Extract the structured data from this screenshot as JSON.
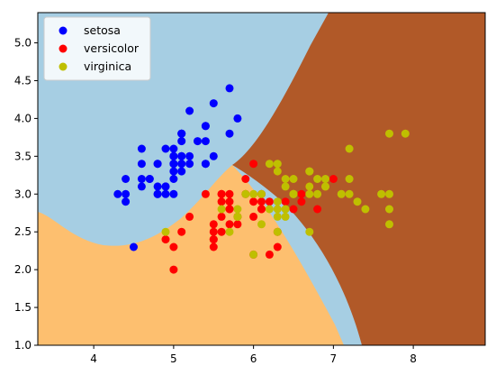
{
  "chart_data": {
    "type": "scatter",
    "title": "",
    "xlabel": "",
    "ylabel": "",
    "xlim": [
      3.3,
      8.9
    ],
    "ylim": [
      1.0,
      5.4
    ],
    "x_ticks": [
      4,
      5,
      6,
      7,
      8
    ],
    "y_ticks": [
      1.0,
      1.5,
      2.0,
      2.5,
      3.0,
      3.5,
      4.0,
      4.5,
      5.0
    ],
    "grid": false,
    "legend_position": "top-left",
    "background_regions": {
      "description_colors": {
        "setosa": "#a6cee3",
        "versicolor": "#fdbf6f",
        "virginica": "#b15928"
      }
    },
    "series": [
      {
        "name": "setosa",
        "color": "#0000ff",
        "points": [
          [
            5.1,
            3.5
          ],
          [
            4.9,
            3.0
          ],
          [
            4.7,
            3.2
          ],
          [
            4.6,
            3.1
          ],
          [
            5.0,
            3.6
          ],
          [
            5.4,
            3.9
          ],
          [
            4.6,
            3.4
          ],
          [
            5.0,
            3.4
          ],
          [
            4.4,
            2.9
          ],
          [
            4.9,
            3.1
          ],
          [
            5.4,
            3.7
          ],
          [
            4.8,
            3.4
          ],
          [
            4.8,
            3.0
          ],
          [
            4.3,
            3.0
          ],
          [
            5.8,
            4.0
          ],
          [
            5.7,
            4.4
          ],
          [
            5.4,
            3.9
          ],
          [
            5.1,
            3.5
          ],
          [
            5.7,
            3.8
          ],
          [
            5.1,
            3.8
          ],
          [
            5.4,
            3.4
          ],
          [
            5.1,
            3.7
          ],
          [
            4.6,
            3.6
          ],
          [
            5.1,
            3.3
          ],
          [
            4.8,
            3.4
          ],
          [
            5.0,
            3.0
          ],
          [
            5.0,
            3.4
          ],
          [
            5.2,
            3.5
          ],
          [
            5.2,
            3.4
          ],
          [
            4.7,
            3.2
          ],
          [
            4.8,
            3.1
          ],
          [
            5.4,
            3.4
          ],
          [
            5.2,
            4.1
          ],
          [
            5.5,
            4.2
          ],
          [
            4.9,
            3.1
          ],
          [
            5.0,
            3.2
          ],
          [
            5.5,
            3.5
          ],
          [
            4.9,
            3.6
          ],
          [
            4.4,
            3.0
          ],
          [
            5.1,
            3.4
          ],
          [
            5.0,
            3.5
          ],
          [
            4.5,
            2.3
          ],
          [
            4.4,
            3.2
          ],
          [
            5.0,
            3.5
          ],
          [
            5.1,
            3.8
          ],
          [
            4.8,
            3.0
          ],
          [
            5.1,
            3.8
          ],
          [
            4.6,
            3.2
          ],
          [
            5.3,
            3.7
          ],
          [
            5.0,
            3.3
          ]
        ]
      },
      {
        "name": "versicolor",
        "color": "#ff0000",
        "points": [
          [
            7.0,
            3.2
          ],
          [
            6.4,
            3.2
          ],
          [
            6.9,
            3.1
          ],
          [
            5.5,
            2.3
          ],
          [
            6.5,
            2.8
          ],
          [
            5.7,
            2.8
          ],
          [
            6.3,
            3.3
          ],
          [
            4.9,
            2.4
          ],
          [
            6.6,
            2.9
          ],
          [
            5.2,
            2.7
          ],
          [
            5.0,
            2.0
          ],
          [
            5.9,
            3.0
          ],
          [
            6.0,
            2.2
          ],
          [
            6.1,
            2.9
          ],
          [
            5.6,
            2.9
          ],
          [
            6.7,
            3.1
          ],
          [
            5.6,
            3.0
          ],
          [
            5.8,
            2.7
          ],
          [
            6.2,
            2.2
          ],
          [
            5.6,
            2.5
          ],
          [
            5.9,
            3.2
          ],
          [
            6.1,
            2.8
          ],
          [
            6.3,
            2.5
          ],
          [
            6.1,
            2.8
          ],
          [
            6.4,
            2.9
          ],
          [
            6.6,
            3.0
          ],
          [
            6.8,
            2.8
          ],
          [
            6.7,
            3.0
          ],
          [
            6.0,
            2.9
          ],
          [
            5.7,
            2.6
          ],
          [
            5.5,
            2.4
          ],
          [
            5.5,
            2.4
          ],
          [
            5.8,
            2.7
          ],
          [
            6.0,
            2.7
          ],
          [
            5.4,
            3.0
          ],
          [
            6.0,
            3.4
          ],
          [
            6.7,
            3.1
          ],
          [
            6.3,
            2.3
          ],
          [
            5.6,
            3.0
          ],
          [
            5.5,
            2.5
          ],
          [
            5.5,
            2.6
          ],
          [
            6.1,
            3.0
          ],
          [
            5.8,
            2.6
          ],
          [
            5.0,
            2.3
          ],
          [
            5.6,
            2.7
          ],
          [
            5.7,
            3.0
          ],
          [
            5.7,
            2.9
          ],
          [
            6.2,
            2.9
          ],
          [
            5.1,
            2.5
          ],
          [
            5.7,
            2.8
          ]
        ]
      },
      {
        "name": "virginica",
        "color": "#bfbf00",
        "points": [
          [
            6.3,
            3.3
          ],
          [
            5.8,
            2.7
          ],
          [
            7.1,
            3.0
          ],
          [
            6.3,
            2.9
          ],
          [
            6.5,
            3.0
          ],
          [
            7.6,
            3.0
          ],
          [
            4.9,
            2.5
          ],
          [
            7.3,
            2.9
          ],
          [
            6.7,
            2.5
          ],
          [
            7.2,
            3.6
          ],
          [
            6.5,
            3.2
          ],
          [
            6.4,
            2.7
          ],
          [
            6.8,
            3.0
          ],
          [
            5.7,
            2.5
          ],
          [
            5.8,
            2.8
          ],
          [
            6.4,
            3.2
          ],
          [
            6.5,
            3.0
          ],
          [
            7.7,
            3.8
          ],
          [
            7.7,
            2.6
          ],
          [
            6.0,
            2.2
          ],
          [
            6.9,
            3.2
          ],
          [
            5.6,
            2.8
          ],
          [
            7.7,
            2.8
          ],
          [
            6.3,
            2.7
          ],
          [
            6.7,
            3.3
          ],
          [
            7.2,
            3.2
          ],
          [
            6.2,
            2.8
          ],
          [
            6.1,
            3.0
          ],
          [
            6.4,
            2.8
          ],
          [
            7.2,
            3.0
          ],
          [
            7.4,
            2.8
          ],
          [
            7.9,
            3.8
          ],
          [
            6.4,
            2.8
          ],
          [
            6.3,
            2.8
          ],
          [
            6.1,
            2.6
          ],
          [
            7.7,
            3.0
          ],
          [
            6.3,
            3.4
          ],
          [
            6.4,
            3.1
          ],
          [
            6.0,
            3.0
          ],
          [
            6.9,
            3.1
          ],
          [
            6.7,
            3.1
          ],
          [
            6.9,
            3.1
          ],
          [
            5.8,
            2.7
          ],
          [
            6.8,
            3.2
          ],
          [
            6.7,
            3.3
          ],
          [
            6.7,
            3.0
          ],
          [
            6.3,
            2.5
          ],
          [
            6.5,
            3.0
          ],
          [
            6.2,
            3.4
          ],
          [
            5.9,
            3.0
          ]
        ]
      }
    ]
  }
}
